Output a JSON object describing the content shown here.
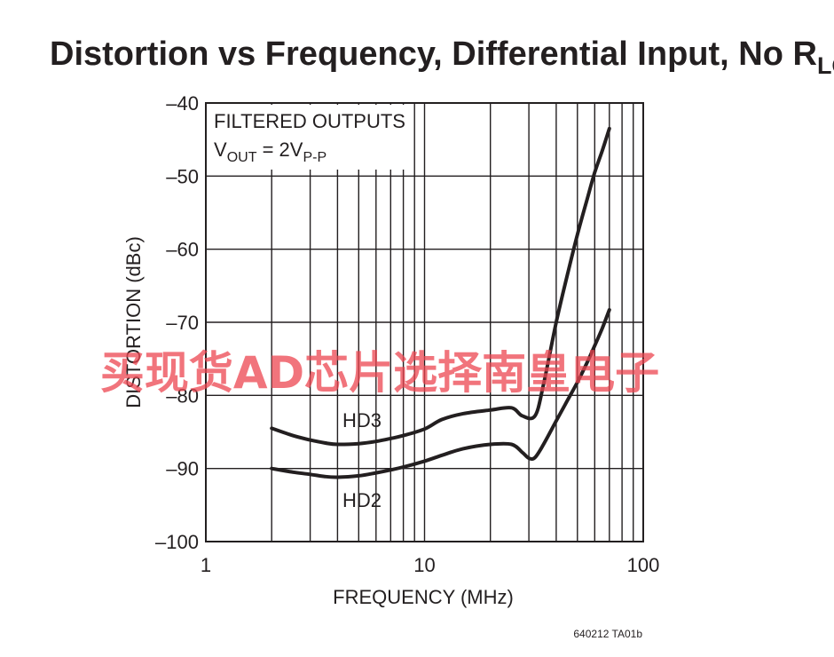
{
  "chart_data": {
    "type": "line",
    "title": {
      "main": "Distortion vs Frequency, Differential Input, No R",
      "subscript": "LOAD"
    },
    "xlabel": "FREQUENCY (MHz)",
    "ylabel": "DISTORTION (dBc)",
    "x_scale": "log",
    "xlim": [
      1,
      100
    ],
    "ylim": [
      -100,
      -40
    ],
    "x_ticks": [
      {
        "value": 1,
        "label": "1"
      },
      {
        "value": 10,
        "label": "10"
      },
      {
        "value": 100,
        "label": "100"
      }
    ],
    "y_ticks": [
      {
        "value": -40,
        "label": "–40"
      },
      {
        "value": -50,
        "label": "–50"
      },
      {
        "value": -60,
        "label": "–60"
      },
      {
        "value": -70,
        "label": "–70"
      },
      {
        "value": -80,
        "label": "–80"
      },
      {
        "value": -90,
        "label": "–90"
      },
      {
        "value": -100,
        "label": "–100"
      }
    ],
    "grid": true,
    "annotations": {
      "line1": "FILTERED OUTPUTS",
      "line2_prefix": "V",
      "line2_sub": "OUT",
      "line2_mid": " = 2V",
      "line2_sub2": "P-P"
    },
    "series": [
      {
        "name": "HD3",
        "x": [
          2,
          2.5,
          3,
          3.5,
          4,
          5,
          6,
          7,
          8,
          10,
          12,
          15,
          20,
          25,
          28,
          32,
          35,
          40,
          45,
          50,
          55,
          60,
          65,
          70
        ],
        "y": [
          -84.5,
          -85.5,
          -86.1,
          -86.5,
          -86.7,
          -86.6,
          -86.3,
          -85.9,
          -85.5,
          -84.6,
          -83.3,
          -82.5,
          -82.0,
          -81.7,
          -82.8,
          -82.8,
          -78.5,
          -70.0,
          -63.5,
          -58.0,
          -53.5,
          -49.5,
          -46.5,
          -43.5
        ]
      },
      {
        "name": "HD2",
        "x": [
          2,
          2.5,
          3,
          3.5,
          4,
          5,
          6,
          7,
          8,
          10,
          12,
          15,
          20,
          25,
          28,
          30,
          32,
          35,
          40,
          45,
          50,
          55,
          60,
          65,
          70
        ],
        "y": [
          -90.0,
          -90.5,
          -90.8,
          -91.1,
          -91.2,
          -91.0,
          -90.6,
          -90.2,
          -89.8,
          -89.0,
          -88.2,
          -87.3,
          -86.7,
          -86.7,
          -87.8,
          -88.6,
          -88.5,
          -86.7,
          -83.5,
          -80.7,
          -78.2,
          -75.7,
          -73.2,
          -70.8,
          -68.3
        ]
      }
    ]
  },
  "figure_code": "640212 TA01b",
  "watermark": "买现货AD芯片选择南皇电子",
  "colors": {
    "ink": "#231f20",
    "watermark": "#ec4650"
  }
}
